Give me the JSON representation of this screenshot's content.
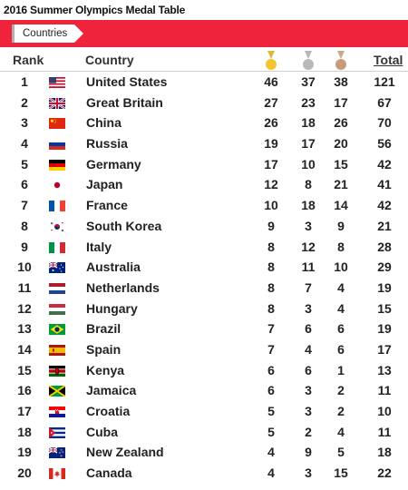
{
  "page": {
    "title": "2016 Summer Olympics Medal Table",
    "tab_label": "Countries",
    "accent_color": "#f0233c"
  },
  "header": {
    "rank": "Rank",
    "country": "Country",
    "total": "Total",
    "medal_icons": [
      "gold-medal-icon",
      "silver-medal-icon",
      "bronze-medal-icon"
    ]
  },
  "rows": [
    {
      "rank": "1",
      "flag": "usa",
      "country": "United States",
      "gold": "46",
      "silver": "37",
      "bronze": "38",
      "total": "121"
    },
    {
      "rank": "2",
      "flag": "gbr",
      "country": "Great Britain",
      "gold": "27",
      "silver": "23",
      "bronze": "17",
      "total": "67"
    },
    {
      "rank": "3",
      "flag": "chn",
      "country": "China",
      "gold": "26",
      "silver": "18",
      "bronze": "26",
      "total": "70"
    },
    {
      "rank": "4",
      "flag": "rus",
      "country": "Russia",
      "gold": "19",
      "silver": "17",
      "bronze": "20",
      "total": "56"
    },
    {
      "rank": "5",
      "flag": "ger",
      "country": "Germany",
      "gold": "17",
      "silver": "10",
      "bronze": "15",
      "total": "42"
    },
    {
      "rank": "6",
      "flag": "jpn",
      "country": "Japan",
      "gold": "12",
      "silver": "8",
      "bronze": "21",
      "total": "41"
    },
    {
      "rank": "7",
      "flag": "fra",
      "country": "France",
      "gold": "10",
      "silver": "18",
      "bronze": "14",
      "total": "42"
    },
    {
      "rank": "8",
      "flag": "kor",
      "country": "South Korea",
      "gold": "9",
      "silver": "3",
      "bronze": "9",
      "total": "21"
    },
    {
      "rank": "9",
      "flag": "ita",
      "country": "Italy",
      "gold": "8",
      "silver": "12",
      "bronze": "8",
      "total": "28"
    },
    {
      "rank": "10",
      "flag": "aus",
      "country": "Australia",
      "gold": "8",
      "silver": "11",
      "bronze": "10",
      "total": "29"
    },
    {
      "rank": "11",
      "flag": "ned",
      "country": "Netherlands",
      "gold": "8",
      "silver": "7",
      "bronze": "4",
      "total": "19"
    },
    {
      "rank": "12",
      "flag": "hun",
      "country": "Hungary",
      "gold": "8",
      "silver": "3",
      "bronze": "4",
      "total": "15"
    },
    {
      "rank": "13",
      "flag": "bra",
      "country": "Brazil",
      "gold": "7",
      "silver": "6",
      "bronze": "6",
      "total": "19"
    },
    {
      "rank": "14",
      "flag": "esp",
      "country": "Spain",
      "gold": "7",
      "silver": "4",
      "bronze": "6",
      "total": "17"
    },
    {
      "rank": "15",
      "flag": "ken",
      "country": "Kenya",
      "gold": "6",
      "silver": "6",
      "bronze": "1",
      "total": "13"
    },
    {
      "rank": "16",
      "flag": "jam",
      "country": "Jamaica",
      "gold": "6",
      "silver": "3",
      "bronze": "2",
      "total": "11"
    },
    {
      "rank": "17",
      "flag": "cro",
      "country": "Croatia",
      "gold": "5",
      "silver": "3",
      "bronze": "2",
      "total": "10"
    },
    {
      "rank": "18",
      "flag": "cub",
      "country": "Cuba",
      "gold": "5",
      "silver": "2",
      "bronze": "4",
      "total": "11"
    },
    {
      "rank": "19",
      "flag": "nzl",
      "country": "New Zealand",
      "gold": "4",
      "silver": "9",
      "bronze": "5",
      "total": "18"
    },
    {
      "rank": "20",
      "flag": "can",
      "country": "Canada",
      "gold": "4",
      "silver": "3",
      "bronze": "15",
      "total": "22"
    }
  ]
}
